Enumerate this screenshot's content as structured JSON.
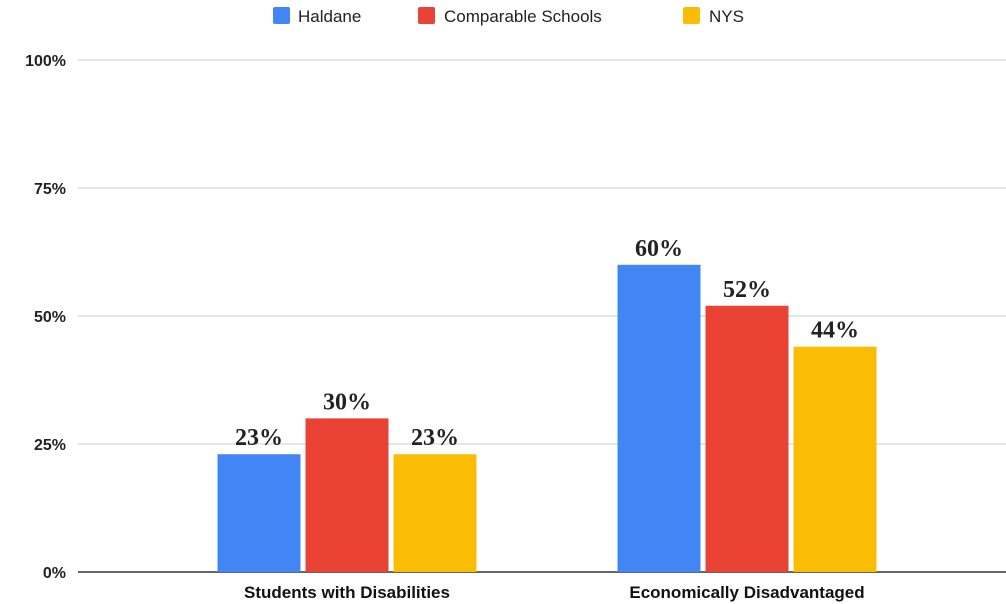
{
  "chart_data": {
    "type": "bar",
    "categories": [
      "Students with Disabilities",
      "Economically Disadvantaged"
    ],
    "series": [
      {
        "name": "Haldane",
        "color": "#4285f4",
        "values": [
          23,
          60
        ]
      },
      {
        "name": "Comparable Schools",
        "color": "#ea4335",
        "values": [
          30,
          52
        ]
      },
      {
        "name": "NYS",
        "color": "#fbbc04",
        "values": [
          23,
          44
        ]
      }
    ],
    "data_labels": [
      [
        "23%",
        "60%"
      ],
      [
        "30%",
        "52%"
      ],
      [
        "23%",
        "44%"
      ]
    ],
    "yticks": [
      0,
      25,
      50,
      75,
      100
    ],
    "ytick_labels": [
      "0%",
      "25%",
      "50%",
      "75%",
      "100%"
    ],
    "ylim": [
      0,
      100
    ],
    "grid": true,
    "legend_position": "top"
  }
}
